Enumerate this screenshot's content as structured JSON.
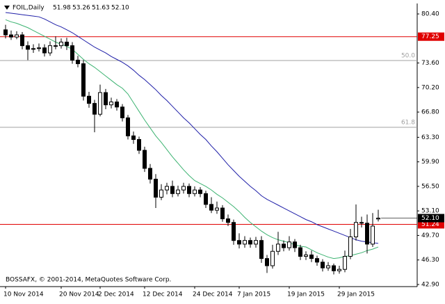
{
  "chart_data": {
    "type": "candlestick",
    "title": "FOIL,Daily",
    "last_bar_labels": [
      "51.98",
      "53.26",
      "51.63",
      "52.10"
    ],
    "footer": "BOSSAFX, © 2001-2014, MetaQuotes Software Corp.",
    "categories": [
      "10 Nov 2014",
      null,
      null,
      null,
      null,
      null,
      null,
      null,
      null,
      null,
      "20 Nov 2014",
      null,
      null,
      null,
      null,
      null,
      null,
      "2 Dec 2014",
      null,
      null,
      null,
      null,
      null,
      null,
      null,
      "12 Dec 2014",
      null,
      null,
      null,
      null,
      null,
      null,
      null,
      null,
      "24 Dec 2014",
      null,
      null,
      null,
      null,
      null,
      null,
      null,
      "7 Jan 2015",
      null,
      null,
      null,
      null,
      null,
      null,
      null,
      null,
      "19 Jan 2015",
      null,
      null,
      null,
      null,
      null,
      null,
      null,
      null,
      "29 Jan 2015",
      null,
      null,
      null,
      null,
      null,
      null,
      null
    ],
    "open": [
      78.2,
      77.5,
      77.2,
      77.5,
      76.0,
      75.5,
      75.6,
      75.7,
      75.0,
      76.0,
      76.0,
      76.5,
      76.0,
      74.0,
      73.5,
      69.0,
      68.0,
      66.5,
      69.5,
      67.8,
      68.2,
      67.5,
      66.0,
      63.5,
      63.0,
      61.5,
      59.0,
      57.5,
      55.0,
      56.0,
      56.5,
      55.5,
      56.0,
      56.5,
      55.5,
      56.0,
      55.5,
      54.0,
      53.2,
      53.5,
      52.0,
      51.5,
      49.0,
      48.5,
      49.0,
      48.5,
      49.0,
      46.5,
      45.5,
      47.5,
      48.5,
      48.0,
      48.8,
      48.0,
      46.8,
      47.0,
      46.5,
      46.0,
      45.2,
      45.5,
      44.8,
      45.0,
      46.8,
      49.5,
      51.5,
      51.4,
      48.5,
      51.98
    ],
    "high": [
      78.9,
      78.1,
      78.0,
      77.9,
      76.6,
      76.2,
      76.3,
      76.2,
      76.6,
      77.3,
      77.0,
      77.1,
      76.5,
      74.6,
      74.0,
      69.6,
      68.5,
      70.6,
      70.0,
      68.8,
      68.6,
      67.9,
      66.4,
      64.1,
      63.4,
      62.0,
      59.6,
      58.2,
      56.8,
      57.0,
      57.3,
      56.6,
      57.0,
      56.9,
      56.5,
      56.4,
      55.9,
      55.0,
      54.4,
      53.9,
      52.6,
      51.9,
      50.0,
      49.6,
      49.4,
      49.5,
      49.6,
      47.0,
      48.4,
      50.2,
      49.0,
      49.6,
      49.2,
      48.4,
      47.5,
      47.6,
      46.9,
      46.4,
      46.0,
      45.8,
      45.5,
      47.6,
      50.6,
      54.0,
      52.3,
      52.6,
      52.8,
      53.26
    ],
    "low": [
      77.0,
      76.8,
      76.9,
      75.5,
      74.0,
      75.0,
      75.2,
      74.5,
      74.6,
      75.5,
      75.6,
      75.4,
      73.5,
      73.0,
      68.4,
      67.4,
      64.0,
      66.2,
      67.2,
      67.3,
      67.0,
      65.5,
      63.0,
      62.4,
      61.0,
      58.5,
      56.9,
      53.5,
      54.6,
      55.4,
      55.0,
      55.1,
      55.5,
      55.0,
      55.1,
      55.0,
      53.5,
      52.8,
      52.7,
      51.6,
      51.0,
      48.4,
      47.9,
      48.0,
      48.0,
      48.0,
      45.9,
      44.5,
      45.1,
      47.0,
      47.5,
      47.6,
      47.4,
      46.3,
      46.3,
      46.0,
      45.5,
      44.7,
      44.8,
      44.3,
      44.4,
      44.6,
      46.4,
      49.0,
      50.8,
      47.2,
      48.1,
      51.63
    ],
    "close": [
      77.5,
      77.2,
      77.5,
      76.0,
      75.5,
      75.6,
      75.7,
      75.0,
      76.0,
      76.0,
      76.5,
      76.0,
      74.0,
      73.5,
      69.0,
      68.0,
      66.5,
      69.5,
      67.8,
      68.2,
      67.5,
      66.0,
      63.5,
      63.0,
      61.5,
      59.0,
      57.5,
      55.0,
      56.0,
      56.5,
      55.5,
      56.0,
      56.5,
      55.5,
      56.0,
      55.5,
      54.0,
      53.2,
      53.5,
      52.0,
      51.5,
      49.0,
      48.5,
      49.0,
      48.5,
      49.0,
      46.5,
      45.5,
      47.5,
      48.5,
      48.0,
      48.8,
      48.0,
      46.8,
      47.0,
      46.5,
      46.0,
      45.2,
      45.5,
      44.8,
      45.0,
      46.8,
      49.5,
      51.5,
      51.4,
      48.5,
      51.0,
      52.1
    ],
    "up_color": "#ffffff",
    "down_color": "#000000",
    "moving_averages": [
      {
        "color": "#1f1fa8",
        "values": [
          80.6,
          80.5,
          80.4,
          80.3,
          80.2,
          80.1,
          80.0,
          79.7,
          79.3,
          78.9,
          78.6,
          78.2,
          77.8,
          77.3,
          76.8,
          76.3,
          75.8,
          75.4,
          75.0,
          74.5,
          74.1,
          73.7,
          73.2,
          72.6,
          71.9,
          71.3,
          70.6,
          69.9,
          69.1,
          68.4,
          67.6,
          66.8,
          66.0,
          65.3,
          64.5,
          63.7,
          63.0,
          62.1,
          61.3,
          60.4,
          59.5,
          58.7,
          57.9,
          57.2,
          56.5,
          55.9,
          55.2,
          54.7,
          54.3,
          53.9,
          53.5,
          53.1,
          52.7,
          52.3,
          51.9,
          51.6,
          51.2,
          50.9,
          50.6,
          50.3,
          50.0,
          49.7,
          49.4,
          49.1,
          48.9,
          48.8,
          48.7,
          48.6
        ]
      },
      {
        "color": "#3cb371",
        "values": [
          79.6,
          79.3,
          79.1,
          78.8,
          78.5,
          78.1,
          77.7,
          77.3,
          76.9,
          76.5,
          76.2,
          75.9,
          75.5,
          74.8,
          74.1,
          73.5,
          73.0,
          72.4,
          71.8,
          71.2,
          70.6,
          70.1,
          69.3,
          68.1,
          66.9,
          65.7,
          64.6,
          63.5,
          62.6,
          61.6,
          60.6,
          59.7,
          58.8,
          58.0,
          57.3,
          56.9,
          56.5,
          56.0,
          55.4,
          54.9,
          54.3,
          53.7,
          53.0,
          52.2,
          51.5,
          50.9,
          50.3,
          49.8,
          49.4,
          49.1,
          48.9,
          48.7,
          48.4,
          48.2,
          48.1,
          47.7,
          47.3,
          47.0,
          46.7,
          46.5,
          46.6,
          46.8,
          46.9,
          47.1,
          47.3,
          47.6,
          47.8,
          48.1
        ]
      }
    ],
    "hlines": [
      {
        "value": 77.25,
        "color": "#e00000"
      },
      {
        "value": 51.24,
        "color": "#e00000"
      }
    ],
    "fib_levels": [
      {
        "value": 73.94,
        "label": "50.0"
      },
      {
        "value": 64.69,
        "label": "61.8"
      }
    ],
    "fib_color": "#a0a0a0",
    "ylim": [
      42.8,
      81.85
    ],
    "yticks": [
      {
        "value": 80.4,
        "label": "80.40"
      },
      {
        "value": 73.6,
        "label": "73.60"
      },
      {
        "value": 70.2,
        "label": "70.20"
      },
      {
        "value": 66.8,
        "label": "66.80"
      },
      {
        "value": 63.3,
        "label": "63.30"
      },
      {
        "value": 59.9,
        "label": "59.90"
      },
      {
        "value": 56.5,
        "label": "56.50"
      },
      {
        "value": 53.1,
        "label": "53.10"
      },
      {
        "value": 49.7,
        "label": "49.70"
      },
      {
        "value": 46.3,
        "label": "46.30"
      },
      {
        "value": 42.9,
        "label": "42.90"
      }
    ]
  }
}
